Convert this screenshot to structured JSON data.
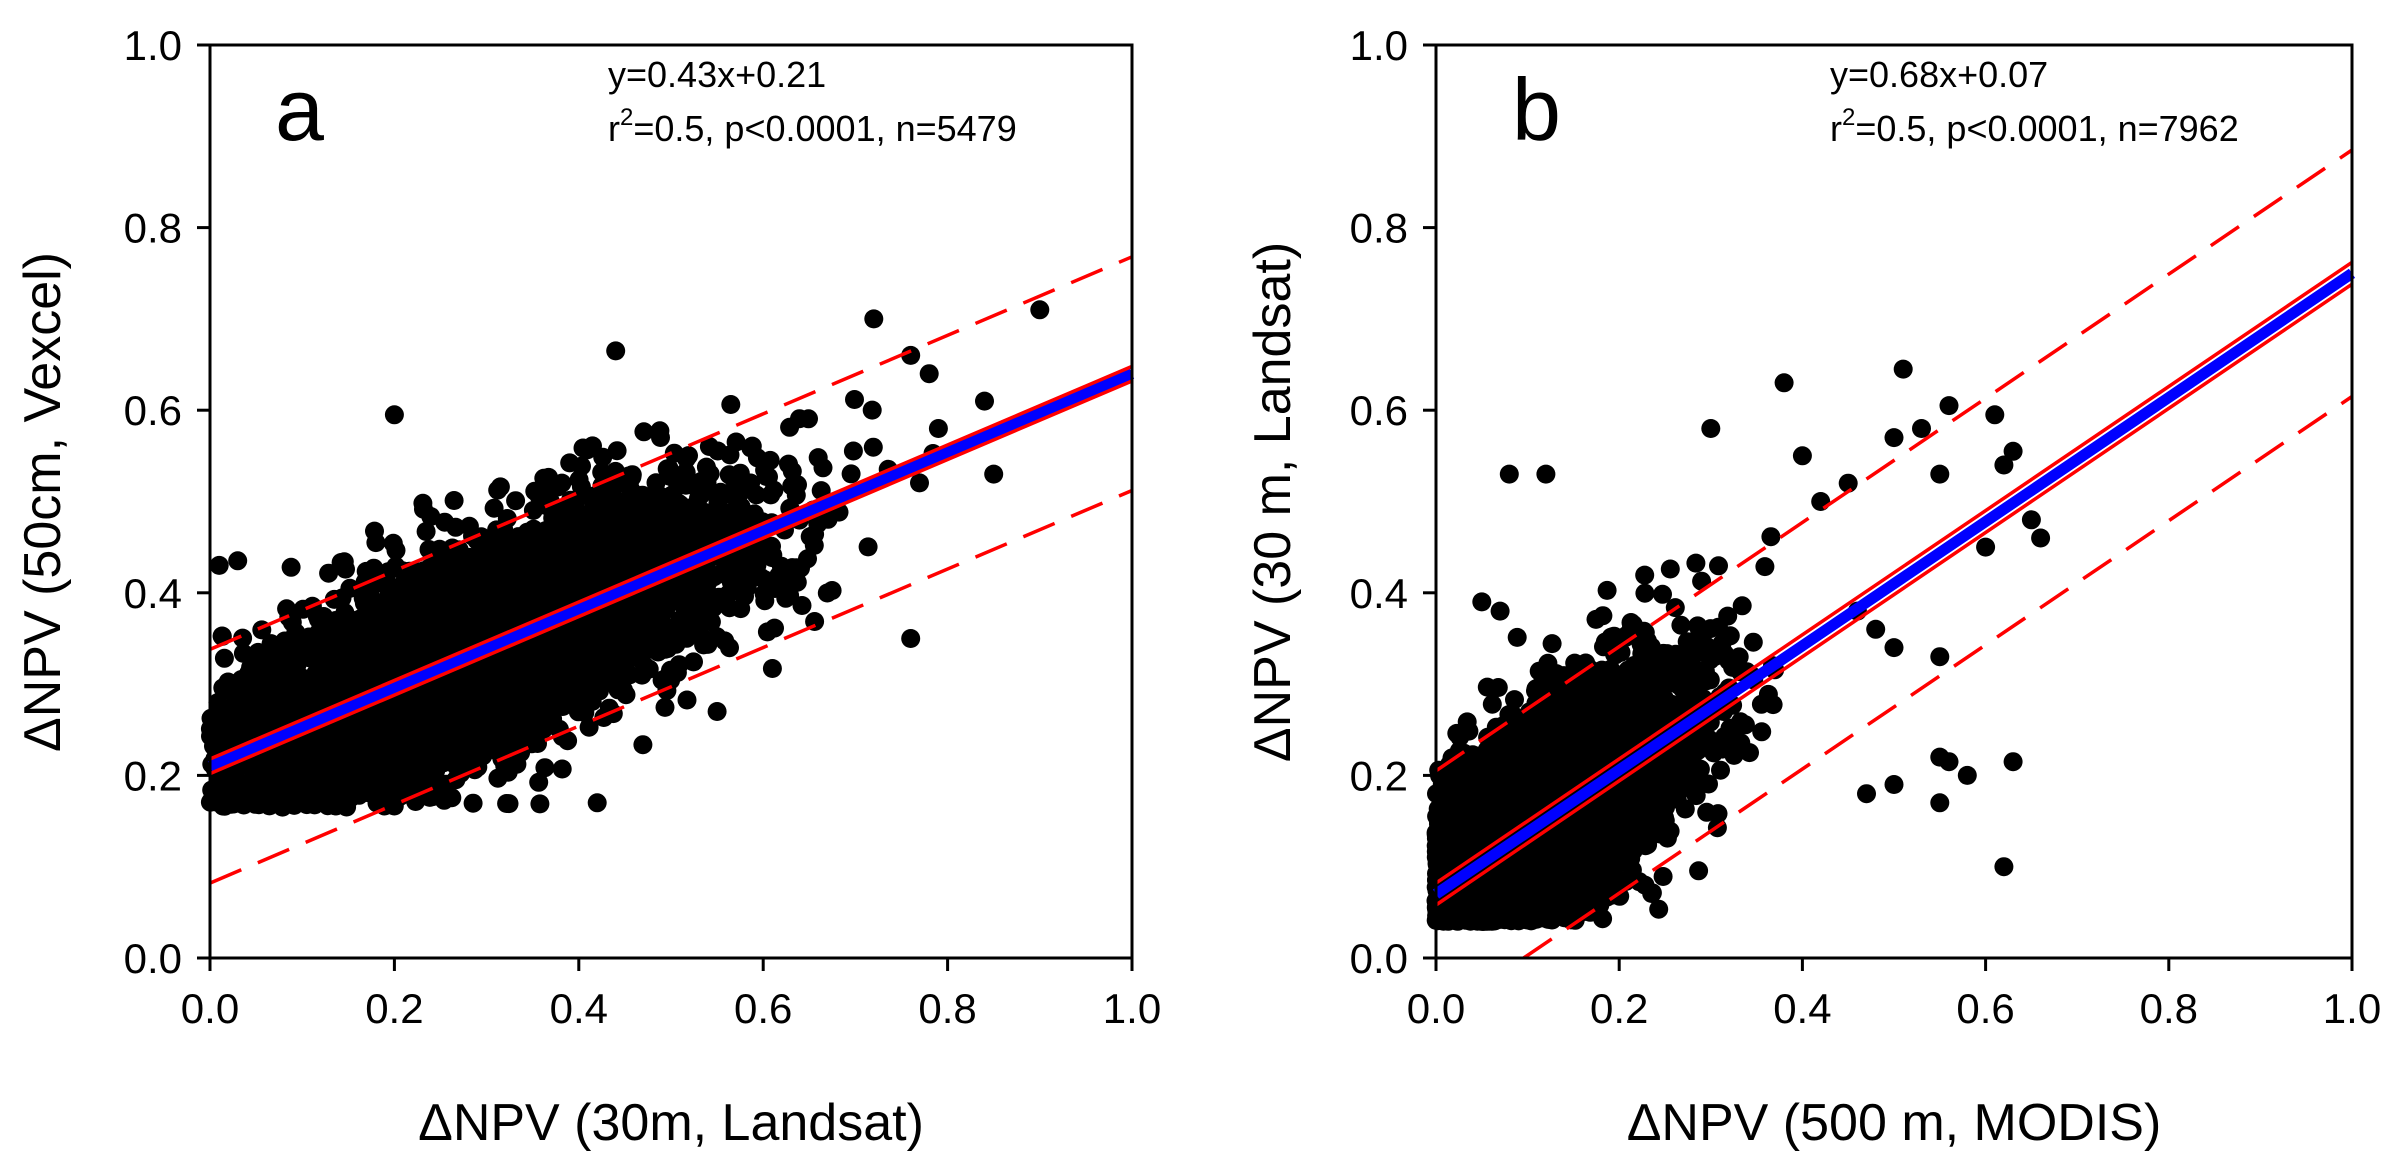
{
  "chart_data": [
    {
      "type": "scatter",
      "panel_label": "a",
      "xlabel": "ΔNPV (30m, Landsat)",
      "ylabel": "ΔNPV (50cm, Vexcel)",
      "xlim": [
        0.0,
        1.0
      ],
      "ylim": [
        0.0,
        1.0
      ],
      "xticks": [
        "0.0",
        "0.2",
        "0.4",
        "0.6",
        "0.8",
        "1.0"
      ],
      "yticks": [
        "0.0",
        "0.2",
        "0.4",
        "0.6",
        "0.8",
        "1.0"
      ],
      "grid": false,
      "legend": "none",
      "annotation_line1": "y=0.43x+0.21",
      "annotation_line2_prefix": "r",
      "annotation_line2_sup": "2",
      "annotation_line2_rest": "=0.5, p<0.0001, n=5479",
      "regression": {
        "slope": 0.43,
        "intercept": 0.21,
        "color": "#0000ff"
      },
      "confidence_offset": 0.008,
      "prediction_offset": 0.128,
      "point_color": "#000000",
      "band_color": "#ff0000",
      "n": 5479,
      "cloud": {
        "x_mean": 0.28,
        "x_sd": 0.15,
        "x_min": 0.0,
        "x_max": 0.86,
        "resid_sd": 0.058,
        "y_min": 0.165
      },
      "outliers": [
        [
          0.9,
          0.71
        ],
        [
          0.72,
          0.7
        ],
        [
          0.76,
          0.66
        ],
        [
          0.44,
          0.665
        ],
        [
          0.2,
          0.595
        ],
        [
          0.01,
          0.43
        ],
        [
          0.03,
          0.435
        ],
        [
          0.85,
          0.53
        ],
        [
          0.79,
          0.58
        ],
        [
          0.76,
          0.35
        ],
        [
          0.42,
          0.17
        ],
        [
          0.55,
          0.27
        ],
        [
          0.78,
          0.64
        ],
        [
          0.84,
          0.61
        ]
      ]
    },
    {
      "type": "scatter",
      "panel_label": "b",
      "xlabel": "ΔNPV (500 m, MODIS)",
      "ylabel": "ΔNPV (30 m, Landsat)",
      "xlim": [
        0.0,
        1.0
      ],
      "ylim": [
        0.0,
        1.0
      ],
      "xticks": [
        "0.0",
        "0.2",
        "0.4",
        "0.6",
        "0.8",
        "1.0"
      ],
      "yticks": [
        "0.0",
        "0.2",
        "0.4",
        "0.6",
        "0.8",
        "1.0"
      ],
      "grid": false,
      "legend": "none",
      "annotation_line1": "y=0.68x+0.07",
      "annotation_line2_prefix": "r",
      "annotation_line2_sup": "2",
      "annotation_line2_rest": "=0.5, p<0.0001, n=7962",
      "regression": {
        "slope": 0.68,
        "intercept": 0.07,
        "color": "#0000ff"
      },
      "confidence_offset": 0.012,
      "prediction_offset": 0.135,
      "point_color": "#000000",
      "band_color": "#ff0000",
      "n": 7962,
      "cloud": {
        "x_mean": 0.09,
        "x_sd": 0.09,
        "x_min": 0.0,
        "x_max": 0.37,
        "resid_sd": 0.06,
        "y_min": 0.04
      },
      "outliers": [
        [
          0.51,
          0.645
        ],
        [
          0.38,
          0.63
        ],
        [
          0.56,
          0.605
        ],
        [
          0.61,
          0.595
        ],
        [
          0.63,
          0.555
        ],
        [
          0.62,
          0.54
        ],
        [
          0.5,
          0.57
        ],
        [
          0.53,
          0.58
        ],
        [
          0.55,
          0.53
        ],
        [
          0.66,
          0.46
        ],
        [
          0.6,
          0.45
        ],
        [
          0.62,
          0.1
        ],
        [
          0.63,
          0.215
        ],
        [
          0.56,
          0.215
        ],
        [
          0.58,
          0.2
        ],
        [
          0.55,
          0.22
        ],
        [
          0.5,
          0.19
        ],
        [
          0.47,
          0.18
        ],
        [
          0.55,
          0.33
        ],
        [
          0.45,
          0.52
        ],
        [
          0.42,
          0.5
        ],
        [
          0.4,
          0.55
        ],
        [
          0.46,
          0.38
        ],
        [
          0.48,
          0.36
        ],
        [
          0.5,
          0.34
        ],
        [
          0.55,
          0.17
        ],
        [
          0.65,
          0.48
        ],
        [
          0.12,
          0.53
        ],
        [
          0.08,
          0.53
        ],
        [
          0.07,
          0.38
        ],
        [
          0.05,
          0.39
        ],
        [
          0.3,
          0.58
        ]
      ]
    }
  ]
}
